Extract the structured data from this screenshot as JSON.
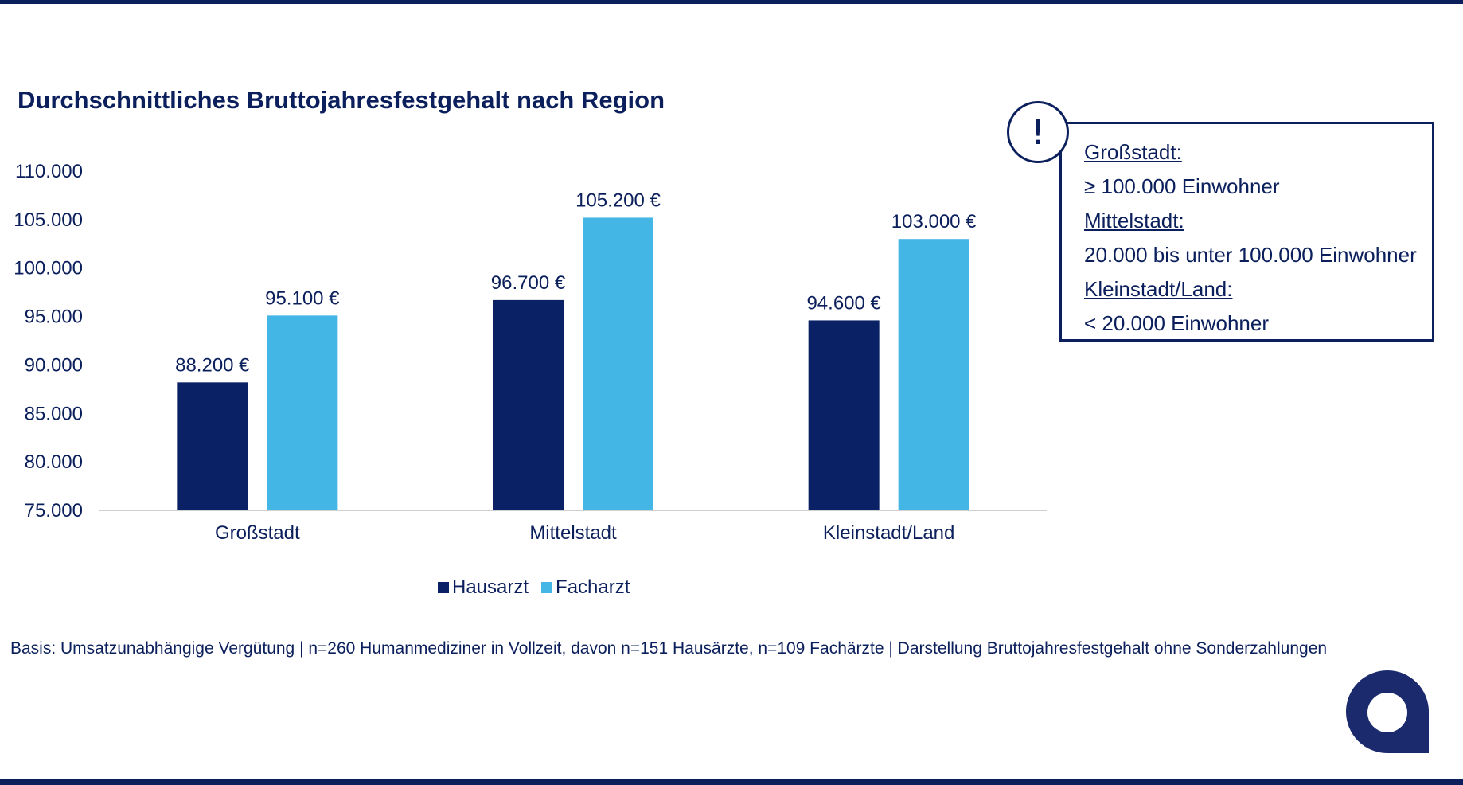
{
  "title": "Durchschnittliches Bruttojahresfestgehalt nach Region",
  "chart_data": {
    "type": "bar",
    "title": "Durchschnittliches Bruttojahresfestgehalt nach Region",
    "categories": [
      "Großstadt",
      "Mittelstadt",
      "Kleinstadt/Land"
    ],
    "series": [
      {
        "name": "Hausarzt",
        "values": [
          88200,
          96700,
          94600
        ],
        "labels": [
          "88.200 €",
          "96.700 €",
          "94.600 €"
        ]
      },
      {
        "name": "Facharzt",
        "values": [
          95100,
          105200,
          103000
        ],
        "labels": [
          "95.100 €",
          "105.200 €",
          "103.000 €"
        ]
      }
    ],
    "yticks": [
      "75.000",
      "80.000",
      "85.000",
      "90.000",
      "95.000",
      "100.000",
      "105.000",
      "110.000"
    ],
    "ytick_values": [
      75000,
      80000,
      85000,
      90000,
      95000,
      100000,
      105000,
      110000
    ],
    "ylim": [
      75000,
      110000
    ],
    "xlabel": "",
    "ylabel": "",
    "grid": false,
    "legend": "bottom-center"
  },
  "colors": {
    "hausarzt": "#0a2165",
    "facharzt": "#44b6e6",
    "text": "#0b1f5c"
  },
  "info_box": {
    "icon": "exclamation-icon",
    "symbol": "!",
    "lines": [
      {
        "text": "Großstadt:",
        "underline": true
      },
      {
        "text": "≥ 100.000 Einwohner",
        "underline": false
      },
      {
        "text": "Mittelstadt:",
        "underline": true
      },
      {
        "text": "20.000 bis unter 100.000 Einwohner",
        "underline": false
      },
      {
        "text": "Kleinstadt/Land:",
        "underline": true
      },
      {
        "text": "< 20.000 Einwohner",
        "underline": false
      }
    ]
  },
  "footnote": "Basis: Umsatzunabhängige Vergütung | n=260 Humanmediziner in Vollzeit, davon n=151 Hausärzte, n=109 Fachärzte | Darstellung Bruttojahresfestgehalt ohne Sonderzahlungen",
  "logo": "brand-a-logo-icon"
}
